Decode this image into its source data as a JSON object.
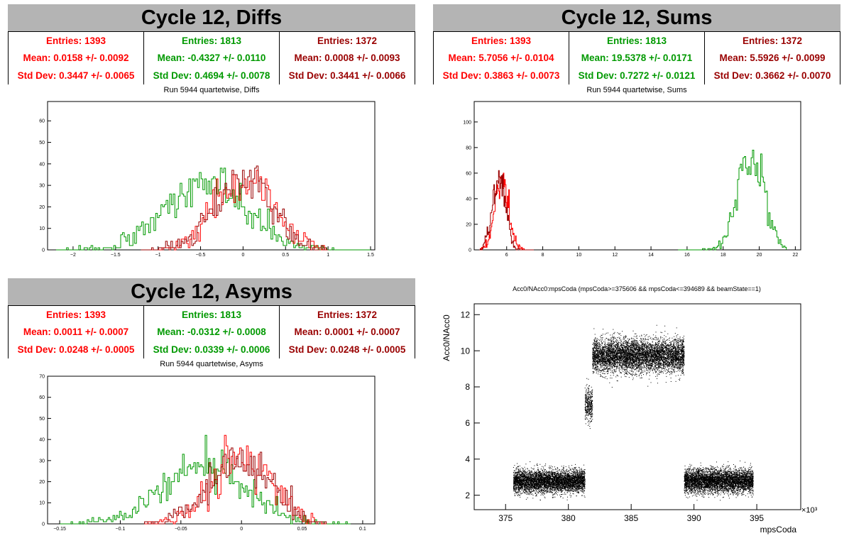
{
  "panels": [
    {
      "title": "Cycle 12, Diffs",
      "subtitle": "Run 5944 quartetwise, Diffs",
      "stats": [
        {
          "entries": "Entries: 1393",
          "mean": "Mean: 0.0158 +/- 0.0092",
          "std": "Std Dev: 0.3447 +/- 0.0065"
        },
        {
          "entries": "Entries: 1813",
          "mean": "Mean: -0.4327 +/- 0.0110",
          "std": "Std Dev: 0.4694 +/- 0.0078"
        },
        {
          "entries": "Entries: 1372",
          "mean": "Mean: 0.0008 +/- 0.0093",
          "std": "Std Dev: 0.3441 +/- 0.0066"
        }
      ]
    },
    {
      "title": "Cycle 12, Sums",
      "subtitle": "Run 5944 quartetwise, Sums",
      "stats": [
        {
          "entries": "Entries: 1393",
          "mean": "Mean: 5.7056 +/- 0.0104",
          "std": "Std Dev: 0.3863 +/- 0.0073"
        },
        {
          "entries": "Entries: 1813",
          "mean": "Mean: 19.5378 +/- 0.0171",
          "std": "Std Dev: 0.7272 +/- 0.0121"
        },
        {
          "entries": "Entries: 1372",
          "mean": "Mean: 5.5926 +/- 0.0099",
          "std": "Std Dev: 0.3662 +/- 0.0070"
        }
      ]
    },
    {
      "title": "Cycle 12, Asyms",
      "subtitle": "Run 5944 quartetwise, Asyms",
      "stats": [
        {
          "entries": "Entries: 1393",
          "mean": "Mean: 0.0011 +/- 0.0007",
          "std": "Std Dev: 0.0248 +/- 0.0005"
        },
        {
          "entries": "Entries: 1813",
          "mean": "Mean: -0.0312 +/- 0.0008",
          "std": "Std Dev: 0.0339 +/- 0.0006"
        },
        {
          "entries": "Entries: 1372",
          "mean": "Mean: 0.0001 +/- 0.0007",
          "std": "Std Dev: 0.0248 +/- 0.0005"
        }
      ]
    }
  ],
  "scatter_title": "Acc0/NAcc0:mpsCoda (mpsCoda>=375606 && mpsCoda<=394689 && beamState==1)",
  "colors": {
    "red": "#ff0000",
    "green": "#009900",
    "darkred": "#990000",
    "title_bg": "#b4b4b4"
  },
  "chart_data": [
    {
      "type": "histogram",
      "xlim": [
        -2.3,
        1.55
      ],
      "ylim": [
        0,
        69
      ],
      "xticks": [
        -2,
        -1.5,
        -1,
        -0.5,
        0,
        0.5,
        1,
        1.5
      ],
      "xtick_labels": [
        "−2",
        "−1.5",
        "−1",
        "−0.5",
        "0",
        "0.5",
        "1",
        "1.5"
      ],
      "yticks": [
        0,
        10,
        20,
        30,
        40,
        50,
        60
      ],
      "series": [
        {
          "color": "green",
          "entries": 1813,
          "mean": -0.4327,
          "std": 0.4694,
          "xmin": -2.2,
          "xmax": 1.5,
          "nbins": 180
        },
        {
          "color": "red",
          "entries": 1393,
          "mean": 0.0158,
          "std": 0.3447,
          "xmin": -1.2,
          "xmax": 1.0,
          "nbins": 107
        },
        {
          "color": "darkred",
          "entries": 1372,
          "mean": 0.0008,
          "std": 0.3441,
          "xmin": -1.2,
          "xmax": 1.0,
          "nbins": 107
        }
      ]
    },
    {
      "type": "histogram",
      "xlim": [
        4.2,
        22.3
      ],
      "ylim": [
        0,
        116
      ],
      "xticks": [
        6,
        8,
        10,
        12,
        14,
        16,
        18,
        20,
        22
      ],
      "xtick_labels": [
        "6",
        "8",
        "10",
        "12",
        "14",
        "16",
        "18",
        "20",
        "22"
      ],
      "yticks": [
        0,
        20,
        40,
        60,
        80,
        100
      ],
      "series": [
        {
          "color": "green",
          "entries": 1813,
          "mean": 19.5378,
          "std": 0.7272,
          "xmin": 15.5,
          "xmax": 21.5,
          "nbins": 80
        },
        {
          "color": "red",
          "entries": 1393,
          "mean": 5.7056,
          "std": 0.3863,
          "xmin": 4.5,
          "xmax": 7.5,
          "nbins": 80
        },
        {
          "color": "darkred",
          "entries": 1372,
          "mean": 5.5926,
          "std": 0.3662,
          "xmin": 4.5,
          "xmax": 7.5,
          "nbins": 80
        }
      ]
    },
    {
      "type": "histogram",
      "xlim": [
        -0.16,
        0.11
      ],
      "ylim": [
        0,
        70
      ],
      "xticks": [
        -0.15,
        -0.1,
        -0.05,
        0,
        0.05,
        0.1
      ],
      "xtick_labels": [
        "−0.15",
        "−0.1",
        "−0.05",
        "0",
        "0.05",
        "0.1"
      ],
      "yticks": [
        0,
        10,
        20,
        30,
        40,
        50,
        60,
        70
      ],
      "series": [
        {
          "color": "green",
          "entries": 1813,
          "mean": -0.0312,
          "std": 0.0339,
          "xmin": -0.15,
          "xmax": 0.09,
          "nbins": 180
        },
        {
          "color": "red",
          "entries": 1393,
          "mean": 0.0011,
          "std": 0.0248,
          "xmin": -0.08,
          "xmax": 0.07,
          "nbins": 107
        },
        {
          "color": "darkred",
          "entries": 1372,
          "mean": 0.0001,
          "std": 0.0248,
          "xmin": -0.08,
          "xmax": 0.07,
          "nbins": 107
        }
      ]
    },
    {
      "type": "scatter",
      "xlabel": "mpsCoda",
      "ylabel": "Acc0/NAcc0",
      "x_exponent": "×10³",
      "xlim": [
        372.5,
        398.5
      ],
      "ylim": [
        1.2,
        12.6
      ],
      "xticks": [
        375,
        380,
        385,
        390,
        395
      ],
      "yticks": [
        2,
        4,
        6,
        8,
        10,
        12
      ],
      "clusters": [
        {
          "x": [
            375.6,
            381.3
          ],
          "y_mean": 2.8,
          "y_spread": 0.45,
          "n": 5000
        },
        {
          "x": [
            381.3,
            381.9
          ],
          "y_mean": 7.0,
          "y_spread": 0.7,
          "n": 350
        },
        {
          "x": [
            381.9,
            389.2
          ],
          "y_mean": 9.75,
          "y_spread": 0.65,
          "n": 6000
        },
        {
          "x": [
            389.2,
            394.7
          ],
          "y_mean": 2.8,
          "y_spread": 0.45,
          "n": 5000
        }
      ]
    }
  ]
}
